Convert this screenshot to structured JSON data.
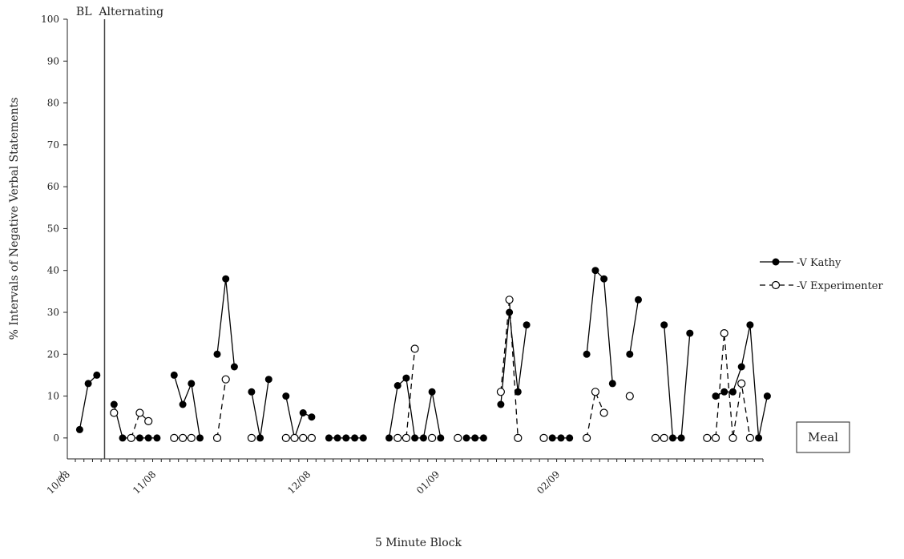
{
  "chart_data": {
    "type": "line",
    "ylabel": "% Intervals of Negative Verbal Statements",
    "xlabel": "5 Minute Block",
    "ylim": [
      -5,
      100
    ],
    "yticks": [
      0,
      10,
      20,
      30,
      40,
      50,
      60,
      70,
      80,
      90,
      100
    ],
    "x_range": [
      0,
      80
    ],
    "date_ticks": [
      {
        "label": "10/08",
        "x": 0
      },
      {
        "label": "11/08",
        "x": 10
      },
      {
        "label": "12/08",
        "x": 28
      },
      {
        "label": "01/09",
        "x": 43
      },
      {
        "label": "02/09",
        "x": 57
      }
    ],
    "partial_tick_label": ")",
    "phases": [
      {
        "label": "BL",
        "x": 1
      },
      {
        "label": "Alternating",
        "x": 6.5
      }
    ],
    "phase_line_x": 3.4,
    "annotation_box": "Meal",
    "legend_position": "right",
    "series": [
      {
        "name": "-V Kathy",
        "style": "solid",
        "marker": "filled",
        "color": "#000000",
        "segments": [
          [
            [
              0.5,
              2
            ],
            [
              1.5,
              13
            ],
            [
              2.5,
              15
            ]
          ],
          [
            [
              4.5,
              8
            ],
            [
              5.5,
              0
            ],
            [
              6.5,
              0
            ],
            [
              7.5,
              0
            ],
            [
              8.5,
              0
            ],
            [
              9.5,
              0
            ]
          ],
          [
            [
              11.5,
              15
            ],
            [
              12.5,
              8
            ],
            [
              13.5,
              13
            ],
            [
              14.5,
              0
            ]
          ],
          [
            [
              16.5,
              20
            ],
            [
              17.5,
              38
            ],
            [
              18.5,
              17
            ]
          ],
          [
            [
              20.5,
              11
            ],
            [
              21.5,
              0
            ],
            [
              22.5,
              14
            ]
          ],
          [
            [
              24.5,
              10
            ],
            [
              25.5,
              0
            ],
            [
              26.5,
              6
            ],
            [
              27.5,
              5
            ]
          ],
          [
            [
              29.5,
              0
            ],
            [
              30.5,
              0
            ],
            [
              31.5,
              0
            ],
            [
              32.5,
              0
            ],
            [
              33.5,
              0
            ]
          ],
          [
            [
              36.5,
              0
            ],
            [
              37.5,
              12.5
            ],
            [
              38.5,
              14.3
            ],
            [
              39.5,
              0
            ],
            [
              40.5,
              0
            ],
            [
              41.5,
              11
            ],
            [
              42.5,
              0
            ]
          ],
          [
            [
              45.5,
              0
            ],
            [
              46.5,
              0
            ],
            [
              47.5,
              0
            ]
          ],
          [
            [
              49.5,
              8
            ],
            [
              50.5,
              30
            ],
            [
              51.5,
              11
            ],
            [
              52.5,
              27
            ]
          ],
          [
            [
              55.5,
              0
            ],
            [
              56.5,
              0
            ],
            [
              57.5,
              0
            ]
          ],
          [
            [
              59.5,
              20
            ],
            [
              60.5,
              40
            ],
            [
              61.5,
              38
            ],
            [
              62.5,
              13
            ]
          ],
          [
            [
              64.5,
              20
            ],
            [
              65.5,
              33
            ]
          ],
          [
            [
              68.5,
              27
            ],
            [
              69.5,
              0
            ],
            [
              70.5,
              0
            ],
            [
              71.5,
              25
            ]
          ],
          [
            [
              74.5,
              10
            ],
            [
              75.5,
              11
            ],
            [
              76.5,
              11
            ],
            [
              77.5,
              17
            ],
            [
              78.5,
              27
            ],
            [
              79.5,
              0
            ],
            [
              80.5,
              10
            ]
          ]
        ]
      },
      {
        "name": "-V Experimenter",
        "style": "dashed",
        "marker": "open",
        "color": "#000000",
        "segments": [
          [
            [
              4.5,
              6
            ]
          ],
          [
            [
              6.5,
              0
            ],
            [
              7.5,
              6
            ],
            [
              8.5,
              4
            ]
          ],
          [
            [
              11.5,
              0
            ],
            [
              12.5,
              0
            ],
            [
              13.5,
              0
            ]
          ],
          [
            [
              16.5,
              0
            ],
            [
              17.5,
              14
            ]
          ],
          [
            [
              20.5,
              0
            ]
          ],
          [
            [
              24.5,
              0
            ],
            [
              25.5,
              0
            ],
            [
              26.5,
              0
            ],
            [
              27.5,
              0
            ]
          ],
          [
            [
              37.5,
              0
            ],
            [
              38.5,
              0
            ],
            [
              39.5,
              21.3
            ]
          ],
          [
            [
              41.5,
              0
            ]
          ],
          [
            [
              44.5,
              0
            ]
          ],
          [
            [
              49.5,
              11
            ],
            [
              50.5,
              33
            ],
            [
              51.5,
              0
            ]
          ],
          [
            [
              54.5,
              0
            ]
          ],
          [
            [
              59.5,
              0
            ],
            [
              60.5,
              11
            ],
            [
              61.5,
              6
            ]
          ],
          [
            [
              64.5,
              10
            ]
          ],
          [
            [
              67.5,
              0
            ],
            [
              68.5,
              0
            ]
          ],
          [
            [
              73.5,
              0
            ],
            [
              74.5,
              0
            ],
            [
              75.5,
              25
            ],
            [
              76.5,
              0
            ],
            [
              77.5,
              13
            ],
            [
              78.5,
              0
            ]
          ]
        ]
      }
    ]
  }
}
